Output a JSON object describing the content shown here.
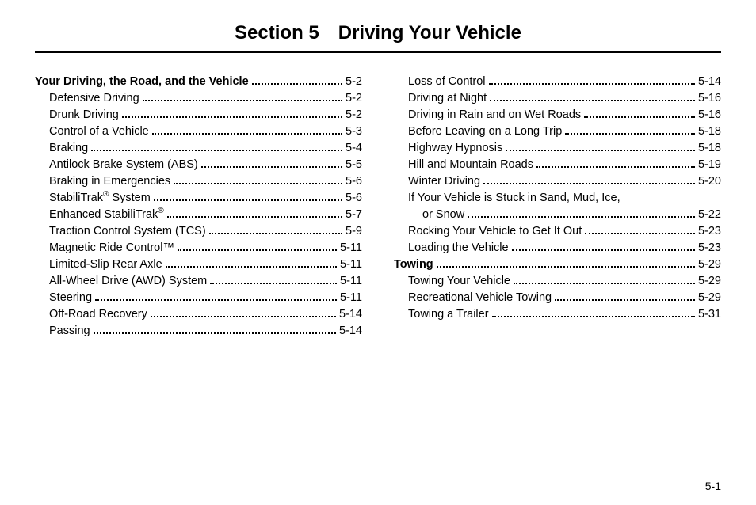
{
  "title": "Section 5 Driving Your Vehicle",
  "page_number": "5-1",
  "columns": [
    [
      {
        "label": "Your Driving, the Road, and the Vehicle",
        "page": "5-2",
        "head": true,
        "indent": 0
      },
      {
        "label": "Defensive Driving",
        "page": "5-2",
        "indent": 1
      },
      {
        "label": "Drunk Driving",
        "page": "5-2",
        "indent": 1
      },
      {
        "label": "Control of a Vehicle",
        "page": "5-3",
        "indent": 1
      },
      {
        "label": "Braking",
        "page": "5-4",
        "indent": 1
      },
      {
        "label": "Antilock Brake System (ABS)",
        "page": "5-5",
        "indent": 1
      },
      {
        "label": "Braking in Emergencies",
        "page": "5-6",
        "indent": 1
      },
      {
        "label": "StabiliTrak",
        "sup": "®",
        "suffix": " System",
        "page": "5-6",
        "indent": 1
      },
      {
        "label": "Enhanced StabiliTrak",
        "sup": "®",
        "page": "5-7",
        "indent": 1
      },
      {
        "label": "Traction Control System (TCS)",
        "page": "5-9",
        "indent": 1
      },
      {
        "label": "Magnetic Ride Control™",
        "page": "5-11",
        "indent": 1
      },
      {
        "label": "Limited-Slip Rear Axle",
        "page": "5-11",
        "indent": 1
      },
      {
        "label": "All-Wheel Drive (AWD) System",
        "page": "5-11",
        "indent": 1
      },
      {
        "label": "Steering",
        "page": "5-11",
        "indent": 1
      },
      {
        "label": "Off-Road Recovery",
        "page": "5-14",
        "indent": 1
      },
      {
        "label": "Passing",
        "page": "5-14",
        "indent": 1
      }
    ],
    [
      {
        "label": "Loss of Control",
        "page": "5-14",
        "indent": 1
      },
      {
        "label": "Driving at Night",
        "page": "5-16",
        "indent": 1
      },
      {
        "label": "Driving in Rain and on Wet Roads",
        "page": "5-16",
        "indent": 1
      },
      {
        "label": "Before Leaving on a Long Trip",
        "page": "5-18",
        "indent": 1
      },
      {
        "label": "Highway Hypnosis",
        "page": "5-18",
        "indent": 1
      },
      {
        "label": "Hill and Mountain Roads",
        "page": "5-19",
        "indent": 1
      },
      {
        "label": "Winter Driving",
        "page": "5-20",
        "indent": 1
      },
      {
        "label": "If Your Vehicle is Stuck in Sand, Mud, Ice,",
        "indent": 1,
        "nobreak": true
      },
      {
        "label": "or Snow",
        "page": "5-22",
        "indent": 2
      },
      {
        "label": "Rocking Your Vehicle to Get It Out",
        "page": "5-23",
        "indent": 1
      },
      {
        "label": "Loading the Vehicle",
        "page": "5-23",
        "indent": 1
      },
      {
        "label": "Towing",
        "page": "5-29",
        "head": true,
        "indent": 0
      },
      {
        "label": "Towing Your Vehicle",
        "page": "5-29",
        "indent": 1
      },
      {
        "label": "Recreational Vehicle Towing",
        "page": "5-29",
        "indent": 1
      },
      {
        "label": "Towing a Trailer",
        "page": "5-31",
        "indent": 1
      }
    ]
  ]
}
